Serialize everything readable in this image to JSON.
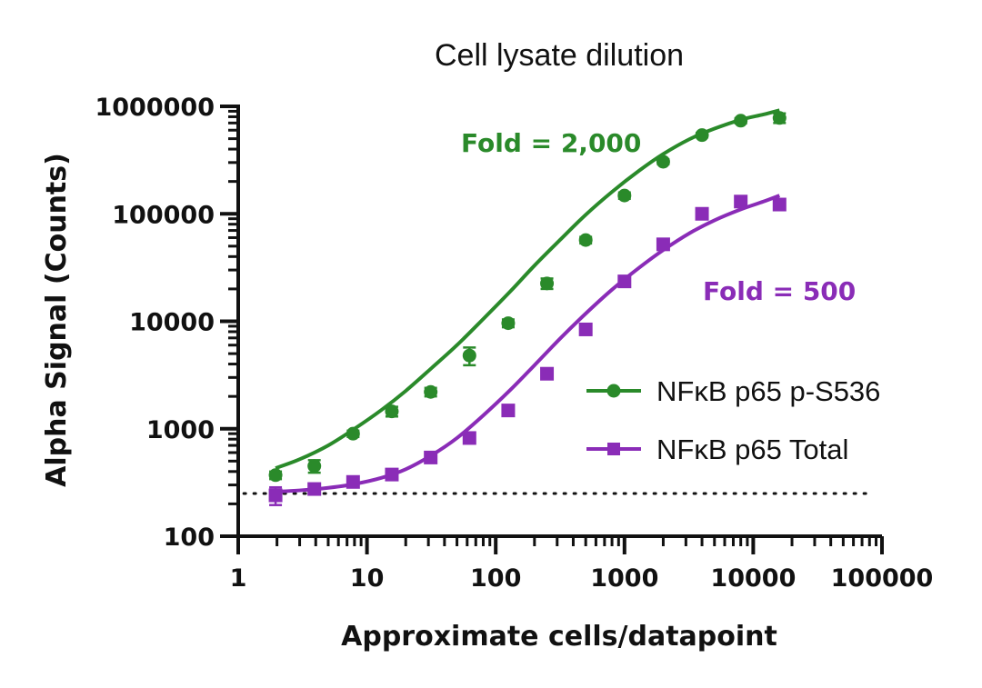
{
  "chart_data": {
    "type": "scatter",
    "title": "Cell lysate dilution",
    "xlabel": "Approximate cells/datapoint",
    "ylabel": "Alpha Signal (Counts)",
    "xscale": "log",
    "yscale": "log",
    "xlim": [
      1,
      100000
    ],
    "ylim": [
      100,
      1000000
    ],
    "x_ticks": [
      1,
      10,
      100,
      1000,
      10000,
      100000
    ],
    "x_tick_labels": [
      "1",
      "10",
      "100",
      "1000",
      "10000",
      "100000"
    ],
    "y_ticks": [
      100,
      1000,
      10000,
      100000,
      1000000
    ],
    "y_tick_labels": [
      "100",
      "1000",
      "10000",
      "100000",
      "1000000"
    ],
    "grid": false,
    "legend_position": "center-right",
    "background_line": {
      "style": "dotted",
      "y": 250,
      "x_range": [
        1.8,
        16000
      ]
    },
    "series": [
      {
        "name": "NFκB p65 p-S536",
        "marker": "circle",
        "color": "#2a8a2a",
        "x": [
          1.95,
          3.9,
          7.8,
          15.6,
          31.25,
          62.5,
          125,
          250,
          500,
          1000,
          2000,
          4000,
          8000,
          16000
        ],
        "y": [
          370,
          450,
          900,
          1450,
          2200,
          4800,
          9600,
          22500,
          57000,
          148000,
          305000,
          540000,
          735000,
          780000
        ],
        "error": [
          30,
          60,
          60,
          150,
          200,
          900,
          800,
          2500,
          4000,
          10000,
          15000,
          25000,
          40000,
          80000
        ],
        "fit_x": [
          1.95,
          3,
          5,
          8,
          13,
          20,
          32,
          50,
          80,
          130,
          200,
          320,
          500,
          800,
          1300,
          2000,
          3200,
          5000,
          8000,
          12000,
          16000
        ],
        "fit_y": [
          430,
          520,
          700,
          1000,
          1500,
          2250,
          3700,
          6000,
          10500,
          19000,
          33000,
          58000,
          98000,
          160000,
          252000,
          360000,
          495000,
          620000,
          750000,
          840000,
          920000
        ],
        "annotation": "Fold = 2,000"
      },
      {
        "name": "NFκB p65 Total",
        "marker": "square",
        "color": "#8a2cb7",
        "x": [
          1.95,
          3.9,
          7.8,
          15.6,
          31.25,
          62.5,
          125,
          250,
          500,
          1000,
          2000,
          4000,
          8000,
          16000
        ],
        "y": [
          240,
          275,
          320,
          375,
          540,
          820,
          1480,
          3250,
          8400,
          23500,
          52000,
          100000,
          130000,
          122000
        ],
        "error": [
          45,
          20,
          20,
          25,
          40,
          50,
          80,
          250,
          600,
          1500,
          3000,
          8000,
          8000,
          10000
        ],
        "fit_x": [
          1.95,
          3,
          5,
          8,
          13,
          20,
          32,
          50,
          80,
          130,
          200,
          320,
          500,
          800,
          1300,
          2000,
          3200,
          5000,
          8000,
          12000,
          16000
        ],
        "fit_y": [
          260,
          267,
          282,
          306,
          350,
          420,
          570,
          820,
          1330,
          2300,
          3900,
          7000,
          11800,
          19700,
          31500,
          46000,
          66000,
          87000,
          110000,
          130000,
          148000
        ],
        "annotation": "Fold = 500"
      }
    ]
  }
}
